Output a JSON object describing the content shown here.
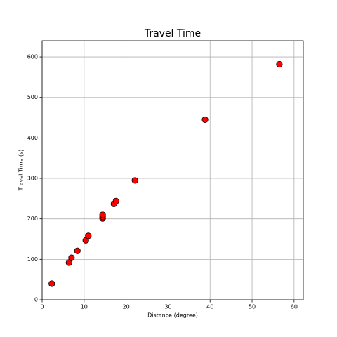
{
  "chart_data": {
    "type": "scatter",
    "title": "Travel Time",
    "x_label": "Distance (degree)",
    "y_label": "Travel Time (s)",
    "series": [
      {
        "color": "#ff0000",
        "x": [
          2.3,
          6.4,
          7.0,
          8.4,
          10.4,
          11.0,
          14.4,
          14.4,
          14.4,
          17.1,
          17.6,
          22.1,
          38.8,
          56.5
        ],
        "values": [
          40,
          92,
          104,
          121,
          147,
          158,
          201,
          205,
          210,
          237,
          244,
          295,
          445,
          582
        ]
      }
    ],
    "xlim": [
      0,
      62.2
    ],
    "xticks": [
      0,
      10,
      20,
      30,
      40,
      50,
      60
    ],
    "ylim": [
      0,
      640
    ],
    "yticks": [
      0,
      100,
      200,
      300,
      400,
      500,
      600
    ],
    "grid": true
  }
}
